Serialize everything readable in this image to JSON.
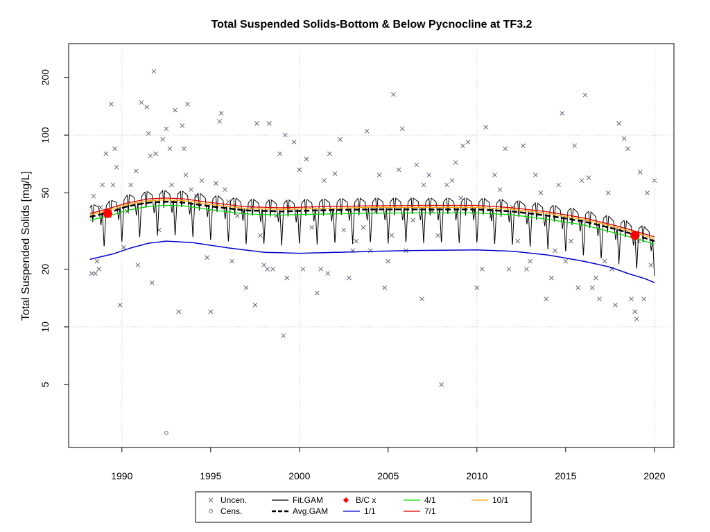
{
  "chart_data": {
    "type": "scatter",
    "title": "Total Suspended Solids-Bottom & Below Pycnocline at TF3.2",
    "xlabel": "",
    "ylabel": "Total Suspended Solids [mg/L]",
    "y_scale": "log",
    "xlim": [
      1987.0,
      2021.1
    ],
    "ylim": [
      2.35,
      300
    ],
    "x_ticks": [
      1990,
      1995,
      2000,
      2005,
      2010,
      2015,
      2020
    ],
    "y_ticks": [
      5,
      10,
      20,
      50,
      100,
      200
    ],
    "grid": true,
    "grid_x": [
      1990,
      2000,
      2010,
      2020
    ],
    "grid_y": [
      10,
      100
    ],
    "colors": {
      "uncensored": "#666677",
      "censored": "#777777",
      "fit_gam": "#000000",
      "avg_gam": "#000000",
      "bc": "#ff0000",
      "one_to_one": "#0000cd",
      "four_to_one": "#00dd00",
      "seven_to_one": "#dd0000",
      "ten_to_one": "#ffa500",
      "grid": "#c8c8c8"
    },
    "legend": {
      "placement": "bottom",
      "entries": [
        {
          "key": "uncen",
          "label": "Uncen."
        },
        {
          "key": "fit",
          "label": "Fit.GAM"
        },
        {
          "key": "bc",
          "label": "B/C x"
        },
        {
          "key": "r4",
          "label": "4/1"
        },
        {
          "key": "r10",
          "label": "10/1"
        },
        {
          "key": "cens",
          "label": "Cens."
        },
        {
          "key": "avg",
          "label": "Avg.GAM"
        },
        {
          "key": "r1",
          "label": "1/1"
        },
        {
          "key": "r7",
          "label": "7/1"
        }
      ]
    },
    "series": [
      {
        "name": "Uncen.",
        "kind": "points",
        "points": [
          [
            1988.3,
            19
          ],
          [
            1988.4,
            48
          ],
          [
            1988.5,
            19
          ],
          [
            1988.6,
            22
          ],
          [
            1988.7,
            20
          ],
          [
            1988.8,
            42
          ],
          [
            1988.9,
            55
          ],
          [
            1989.1,
            80
          ],
          [
            1989.3,
            38
          ],
          [
            1989.4,
            145
          ],
          [
            1989.5,
            55
          ],
          [
            1989.6,
            85
          ],
          [
            1989.7,
            68
          ],
          [
            1989.9,
            13
          ],
          [
            1990.1,
            26
          ],
          [
            1990.3,
            40
          ],
          [
            1990.5,
            55
          ],
          [
            1990.8,
            65
          ],
          [
            1990.9,
            21
          ],
          [
            1991.1,
            148
          ],
          [
            1991.4,
            140
          ],
          [
            1991.5,
            102
          ],
          [
            1991.6,
            78
          ],
          [
            1991.7,
            17
          ],
          [
            1991.8,
            215
          ],
          [
            1991.9,
            80
          ],
          [
            1992.1,
            32
          ],
          [
            1992.3,
            95
          ],
          [
            1992.5,
            108
          ],
          [
            1992.7,
            85
          ],
          [
            1992.8,
            55
          ],
          [
            1993.0,
            135
          ],
          [
            1993.2,
            12
          ],
          [
            1993.4,
            112
          ],
          [
            1993.5,
            85
          ],
          [
            1993.6,
            62
          ],
          [
            1993.7,
            145
          ],
          [
            1993.9,
            52
          ],
          [
            1994.2,
            48
          ],
          [
            1994.5,
            58
          ],
          [
            1994.8,
            23
          ],
          [
            1995.0,
            12
          ],
          [
            1995.3,
            56
          ],
          [
            1995.5,
            118
          ],
          [
            1995.6,
            130
          ],
          [
            1995.8,
            52
          ],
          [
            1996.0,
            45
          ],
          [
            1996.2,
            22
          ],
          [
            1996.5,
            38
          ],
          [
            1996.8,
            40
          ],
          [
            1997.0,
            16
          ],
          [
            1997.3,
            42
          ],
          [
            1997.5,
            13
          ],
          [
            1997.6,
            115
          ],
          [
            1997.8,
            30
          ],
          [
            1998.0,
            21
          ],
          [
            1998.2,
            20
          ],
          [
            1998.3,
            115
          ],
          [
            1998.5,
            20
          ],
          [
            1998.7,
            38
          ],
          [
            1998.9,
            80
          ],
          [
            1999.1,
            9
          ],
          [
            1999.2,
            100
          ],
          [
            1999.3,
            18
          ],
          [
            1999.4,
            42
          ],
          [
            1999.7,
            92
          ],
          [
            2000.0,
            66
          ],
          [
            2000.2,
            20
          ],
          [
            2000.4,
            75
          ],
          [
            2000.7,
            33
          ],
          [
            2001.0,
            15
          ],
          [
            2001.2,
            20
          ],
          [
            2001.4,
            58
          ],
          [
            2001.6,
            19
          ],
          [
            2001.7,
            80
          ],
          [
            2002.0,
            63
          ],
          [
            2002.3,
            95
          ],
          [
            2002.5,
            32
          ],
          [
            2002.8,
            18
          ],
          [
            2003.0,
            25
          ],
          [
            2003.2,
            28
          ],
          [
            2003.6,
            33
          ],
          [
            2003.8,
            105
          ],
          [
            2004.0,
            25
          ],
          [
            2004.3,
            40
          ],
          [
            2004.5,
            62
          ],
          [
            2004.8,
            16
          ],
          [
            2005.0,
            22
          ],
          [
            2005.2,
            30
          ],
          [
            2005.3,
            163
          ],
          [
            2005.6,
            66
          ],
          [
            2005.8,
            108
          ],
          [
            2006.0,
            25
          ],
          [
            2006.4,
            36
          ],
          [
            2006.6,
            70
          ],
          [
            2006.9,
            14
          ],
          [
            2007.0,
            55
          ],
          [
            2007.3,
            62
          ],
          [
            2007.5,
            40
          ],
          [
            2007.8,
            30
          ],
          [
            2008.0,
            5
          ],
          [
            2008.3,
            55
          ],
          [
            2008.6,
            58
          ],
          [
            2008.8,
            72
          ],
          [
            2009.1,
            47
          ],
          [
            2009.2,
            88
          ],
          [
            2009.5,
            92
          ],
          [
            2009.8,
            40
          ],
          [
            2010.0,
            16
          ],
          [
            2010.3,
            20
          ],
          [
            2010.5,
            110
          ],
          [
            2010.8,
            38
          ],
          [
            2011.0,
            62
          ],
          [
            2011.3,
            52
          ],
          [
            2011.6,
            85
          ],
          [
            2011.8,
            20
          ],
          [
            2012.0,
            42
          ],
          [
            2012.3,
            28
          ],
          [
            2012.6,
            88
          ],
          [
            2012.8,
            20
          ],
          [
            2013.0,
            22
          ],
          [
            2013.3,
            62
          ],
          [
            2013.6,
            50
          ],
          [
            2013.9,
            14
          ],
          [
            2014.2,
            18
          ],
          [
            2014.4,
            25
          ],
          [
            2014.6,
            55
          ],
          [
            2014.8,
            130
          ],
          [
            2015.0,
            22
          ],
          [
            2015.3,
            28
          ],
          [
            2015.5,
            88
          ],
          [
            2015.7,
            16
          ],
          [
            2015.9,
            58
          ],
          [
            2016.1,
            162
          ],
          [
            2016.3,
            60
          ],
          [
            2016.5,
            16
          ],
          [
            2016.7,
            18
          ],
          [
            2016.9,
            14
          ],
          [
            2017.2,
            22
          ],
          [
            2017.4,
            50
          ],
          [
            2017.6,
            20
          ],
          [
            2017.8,
            13
          ],
          [
            2018.0,
            115
          ],
          [
            2018.3,
            96
          ],
          [
            2018.5,
            85
          ],
          [
            2018.7,
            14
          ],
          [
            2018.9,
            12
          ],
          [
            2019.0,
            11
          ],
          [
            2019.1,
            28
          ],
          [
            2019.2,
            64
          ],
          [
            2019.4,
            14
          ],
          [
            2019.6,
            50
          ],
          [
            2019.8,
            21
          ],
          [
            2020.0,
            58
          ]
        ]
      },
      {
        "name": "Cens.",
        "kind": "points",
        "points": [
          [
            1992.5,
            2.8
          ]
        ]
      },
      {
        "name": "Fit.GAM",
        "kind": "seasonal-line",
        "x_start": 1988.2,
        "x_end": 2020.0,
        "amplitude": 0.26
      },
      {
        "name": "Avg.GAM",
        "kind": "line",
        "points": [
          [
            1988.2,
            37.5
          ],
          [
            1989.3,
            39.5
          ],
          [
            1990.3,
            42.5
          ],
          [
            1991.5,
            44.5
          ],
          [
            1992.5,
            45
          ],
          [
            1993.5,
            44.5
          ],
          [
            1995.0,
            42.5
          ],
          [
            1997.0,
            40.5
          ],
          [
            1999.0,
            40
          ],
          [
            2001.0,
            40.5
          ],
          [
            2004.0,
            41
          ],
          [
            2007.0,
            41
          ],
          [
            2010.0,
            41
          ],
          [
            2012.0,
            40
          ],
          [
            2014.0,
            38
          ],
          [
            2016.0,
            35.5
          ],
          [
            2018.0,
            32
          ],
          [
            2019.0,
            30
          ],
          [
            2020.0,
            28
          ]
        ]
      },
      {
        "name": "1/1",
        "kind": "line",
        "points": [
          [
            1988.2,
            22.5
          ],
          [
            1989.5,
            24
          ],
          [
            1990.5,
            25.8
          ],
          [
            1991.5,
            27.3
          ],
          [
            1992.5,
            28
          ],
          [
            1994.0,
            27.5
          ],
          [
            1996.0,
            25.8
          ],
          [
            1998.0,
            24.5
          ],
          [
            2000.0,
            24.2
          ],
          [
            2003.0,
            24.6
          ],
          [
            2006.0,
            25
          ],
          [
            2010.0,
            25.2
          ],
          [
            2012.0,
            24.8
          ],
          [
            2014.0,
            23.7
          ],
          [
            2016.0,
            22
          ],
          [
            2017.5,
            20.5
          ],
          [
            2018.5,
            19
          ],
          [
            2019.5,
            17.8
          ],
          [
            2020.0,
            17
          ]
        ]
      },
      {
        "name": "4/1",
        "kind": "line",
        "points": [
          [
            1988.2,
            36
          ],
          [
            1989.3,
            38
          ],
          [
            1990.3,
            40.5
          ],
          [
            1991.5,
            42.5
          ],
          [
            1992.5,
            43
          ],
          [
            1993.5,
            42.8
          ],
          [
            1995.0,
            40.8
          ],
          [
            1997.0,
            38.8
          ],
          [
            1999.0,
            38.3
          ],
          [
            2001.0,
            38.7
          ],
          [
            2004.0,
            39.2
          ],
          [
            2007.0,
            39.3
          ],
          [
            2010.0,
            39.3
          ],
          [
            2012.0,
            38.4
          ],
          [
            2014.0,
            36.4
          ],
          [
            2016.0,
            34
          ],
          [
            2018.0,
            30.5
          ],
          [
            2019.0,
            28.8
          ],
          [
            2020.0,
            27
          ]
        ]
      },
      {
        "name": "7/1",
        "kind": "line",
        "points": [
          [
            1988.2,
            39
          ],
          [
            1989.3,
            41.5
          ],
          [
            1990.3,
            44.3
          ],
          [
            1991.5,
            46.5
          ],
          [
            1992.5,
            47
          ],
          [
            1993.5,
            46.5
          ],
          [
            1995.0,
            44.5
          ],
          [
            1997.0,
            42.3
          ],
          [
            1999.0,
            41.8
          ],
          [
            2001.0,
            42.3
          ],
          [
            2004.0,
            42.8
          ],
          [
            2007.0,
            43
          ],
          [
            2010.0,
            43
          ],
          [
            2012.0,
            41.8
          ],
          [
            2014.0,
            39.8
          ],
          [
            2016.0,
            37
          ],
          [
            2018.0,
            33.4
          ],
          [
            2019.0,
            31.4
          ],
          [
            2020.0,
            29.5
          ]
        ]
      },
      {
        "name": "10/1",
        "kind": "line",
        "points": [
          [
            1988.2,
            38.3
          ],
          [
            1989.3,
            40.7
          ],
          [
            1990.3,
            43.5
          ],
          [
            1991.5,
            45.5
          ],
          [
            1992.5,
            46
          ],
          [
            1993.5,
            45.5
          ],
          [
            1995.0,
            43.5
          ],
          [
            1997.0,
            41.4
          ],
          [
            1999.0,
            41
          ],
          [
            2001.0,
            41.4
          ],
          [
            2004.0,
            42
          ],
          [
            2007.0,
            42
          ],
          [
            2010.0,
            42
          ],
          [
            2012.0,
            41
          ],
          [
            2014.0,
            39
          ],
          [
            2016.0,
            36.3
          ],
          [
            2018.0,
            32.8
          ],
          [
            2019.0,
            30.8
          ],
          [
            2020.0,
            28.8
          ]
        ]
      },
      {
        "name": "B/C x",
        "kind": "points",
        "points": [
          [
            1989.2,
            39
          ],
          [
            2018.9,
            30
          ]
        ]
      }
    ]
  }
}
